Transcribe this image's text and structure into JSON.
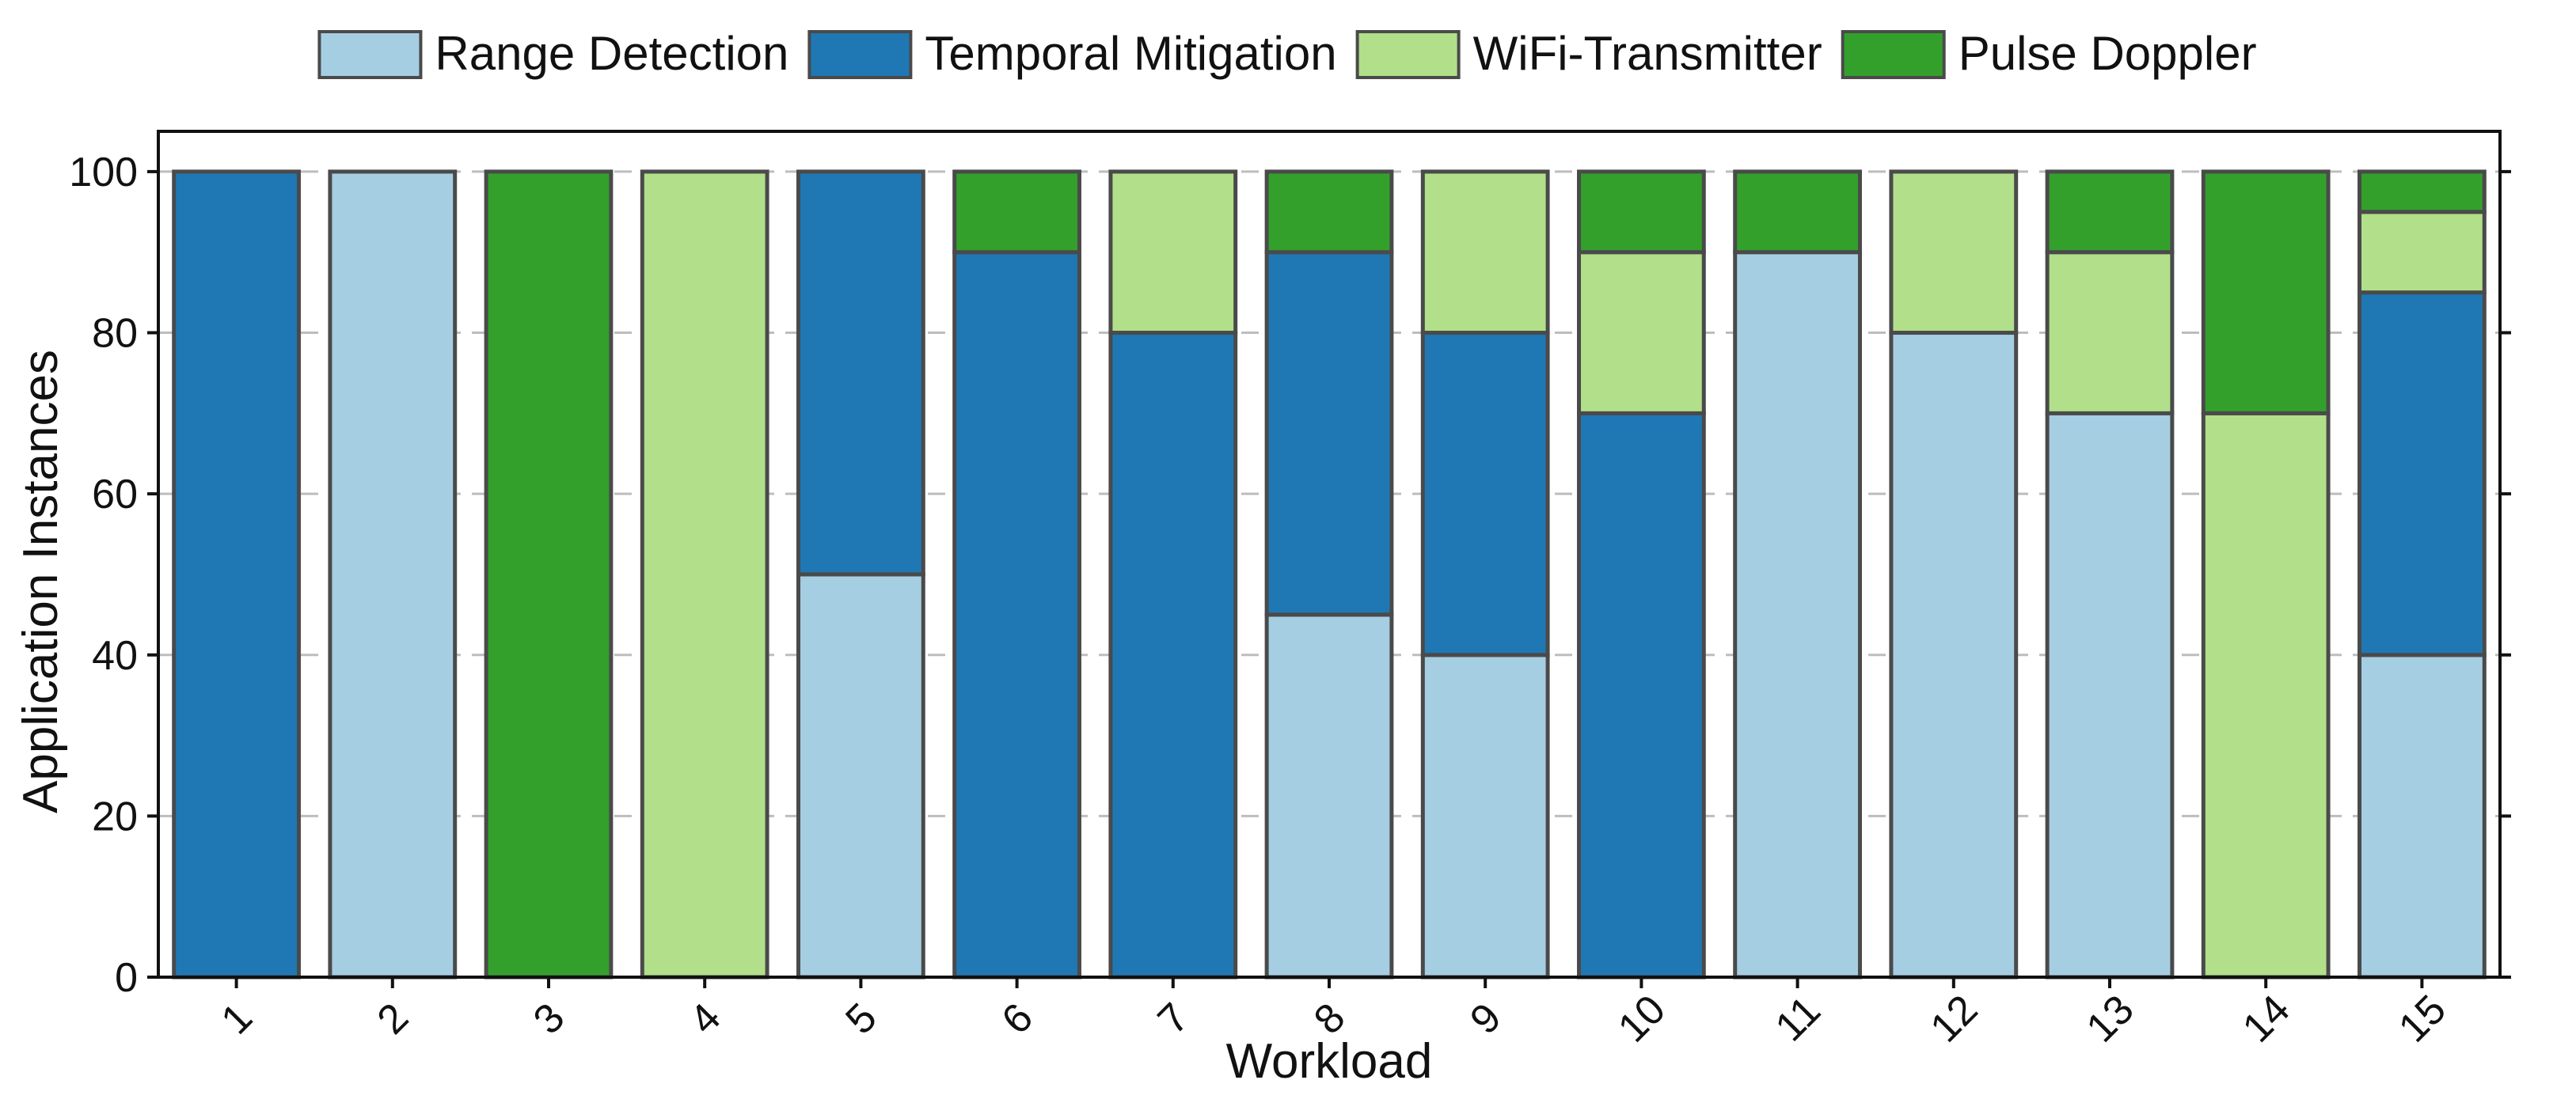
{
  "chart_data": {
    "type": "bar",
    "stacked": true,
    "categories": [
      "1",
      "2",
      "3",
      "4",
      "5",
      "6",
      "7",
      "8",
      "9",
      "10",
      "11",
      "12",
      "13",
      "14",
      "15"
    ],
    "series": [
      {
        "name": "Range Detection",
        "color": "#a6cee3",
        "values": [
          0,
          100,
          0,
          0,
          50,
          0,
          0,
          45,
          40,
          0,
          90,
          80,
          70,
          0,
          40
        ]
      },
      {
        "name": "Temporal Mitigation",
        "color": "#1f78b4",
        "values": [
          100,
          0,
          0,
          0,
          50,
          90,
          80,
          45,
          40,
          70,
          0,
          0,
          0,
          0,
          45
        ]
      },
      {
        "name": "WiFi-Transmitter",
        "color": "#b2df8a",
        "values": [
          0,
          0,
          0,
          100,
          0,
          0,
          20,
          0,
          20,
          20,
          0,
          20,
          20,
          70,
          10
        ]
      },
      {
        "name": "Pulse Doppler",
        "color": "#33a02c",
        "values": [
          0,
          0,
          100,
          0,
          0,
          10,
          0,
          10,
          0,
          10,
          10,
          0,
          10,
          30,
          5
        ]
      }
    ],
    "xlabel": "Workload",
    "ylabel": "Application Instances",
    "ylim": [
      0,
      105
    ],
    "yticks": [
      0,
      20,
      40,
      60,
      80,
      100
    ],
    "grid": "y-dashed",
    "legend": "top-center"
  }
}
